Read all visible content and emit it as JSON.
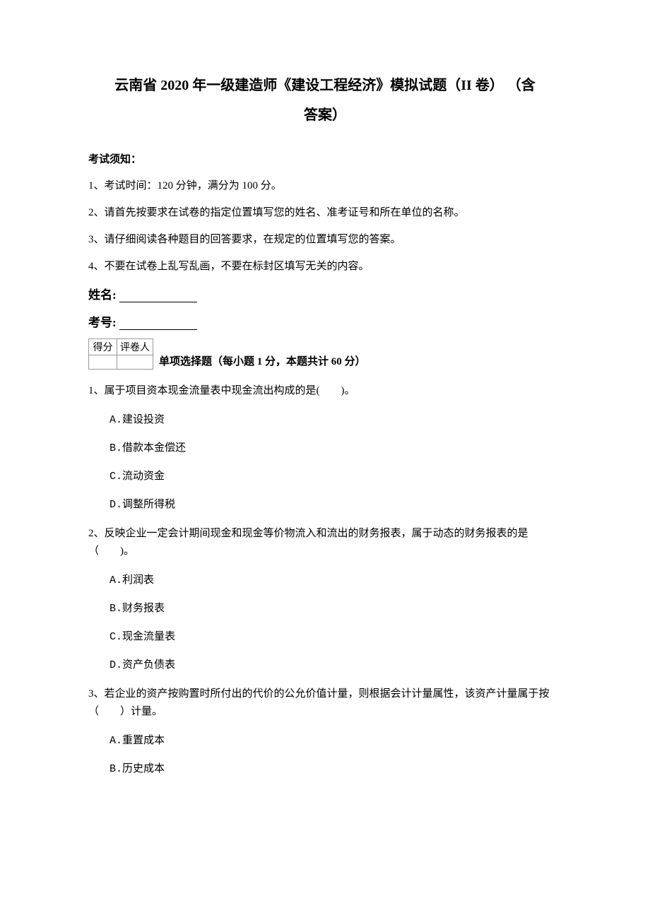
{
  "doc": {
    "title_line1": "云南省 2020 年一级建造师《建设工程经济》模拟试题（II 卷） （含",
    "title_line2": "答案）",
    "notice_header": "考试须知：",
    "notices": [
      "1、考试时间：120 分钟，满分为 100 分。",
      "2、请首先按要求在试卷的指定位置填写您的姓名、准考证号和所在单位的名称。",
      "3、请仔细阅读各种题目的回答要求，在规定的位置填写您的答案。",
      "4、不要在试卷上乱写乱画，不要在标封区填写无关的内容。"
    ],
    "name_label": "姓名:",
    "id_label": "考号:",
    "score_table": {
      "headers": [
        "得分",
        "评卷人"
      ]
    },
    "section_title": "单项选择题（每小题 1 分，本题共计 60 分）",
    "questions": [
      {
        "stem": "1、属于项目资本现金流量表中现金流出构成的是(　　)。",
        "options": [
          "A.建设投资",
          "B.借款本金偿还",
          "C.流动资金",
          "D.调整所得税"
        ]
      },
      {
        "stem": "2、反映企业一定会计期间现金和现金等价物流入和流出的财务报表，属于动态的财务报表的是（　　)。",
        "options": [
          "A.利润表",
          "B.财务报表",
          "C.现金流量表",
          "D.资产负债表"
        ]
      },
      {
        "stem": "3、若企业的资产按购置时所付出的代价的公允价值计量，则根据会计计量属性，该资产计量属于按（　　）计量。",
        "options": [
          "A.重置成本",
          "B.历史成本"
        ]
      }
    ]
  }
}
